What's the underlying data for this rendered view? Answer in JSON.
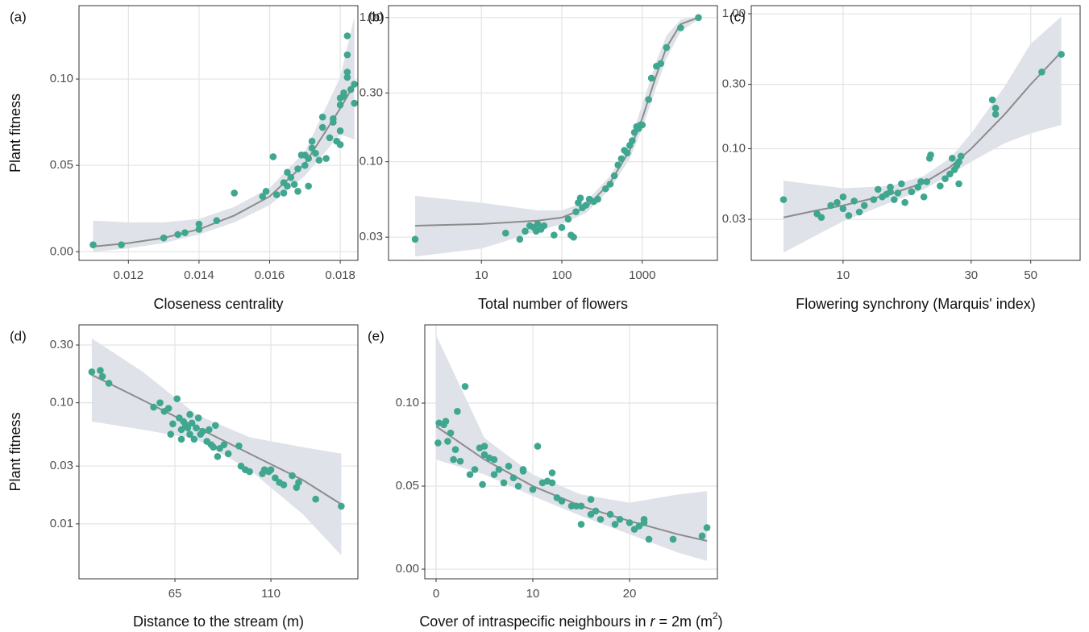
{
  "chart_data": [
    {
      "type": "scatter",
      "panel": "(a)",
      "ylabel": "Plant fitness",
      "xlabel": [
        {
          "text": "Closeness centrality"
        }
      ],
      "xlim": [
        0.0106,
        0.0185
      ],
      "ylim": [
        -0.005,
        0.1425
      ],
      "xticks": [
        0.012,
        0.014,
        0.016,
        0.018
      ],
      "yticks": [
        {
          "value": 0,
          "label": "0.00"
        },
        0.05,
        {
          "value": 0.1,
          "label": "0.10"
        }
      ],
      "xlog": false,
      "ylog": false,
      "grid": true,
      "points": {
        "color": "#3fa68f",
        "x": [
          0.011,
          0.0118,
          0.013,
          0.0134,
          0.0136,
          0.014,
          0.014,
          0.0145,
          0.015,
          0.0158,
          0.0159,
          0.0161,
          0.0162,
          0.0164,
          0.0164,
          0.0165,
          0.0165,
          0.0166,
          0.0167,
          0.0168,
          0.0168,
          0.0169,
          0.017,
          0.017,
          0.0171,
          0.0171,
          0.0172,
          0.0172,
          0.0173,
          0.0174,
          0.0175,
          0.0175,
          0.0176,
          0.0177,
          0.0178,
          0.0178,
          0.0179,
          0.018,
          0.018,
          0.018,
          0.018,
          0.0181,
          0.0182,
          0.0182,
          0.0182,
          0.0182,
          0.0183,
          0.0184,
          0.0184,
          0.0181
        ],
        "y": [
          0.004,
          0.004,
          0.008,
          0.01,
          0.011,
          0.013,
          0.016,
          0.018,
          0.034,
          0.032,
          0.035,
          0.055,
          0.033,
          0.034,
          0.04,
          0.038,
          0.046,
          0.043,
          0.039,
          0.035,
          0.048,
          0.056,
          0.05,
          0.056,
          0.038,
          0.054,
          0.06,
          0.064,
          0.057,
          0.053,
          0.072,
          0.078,
          0.054,
          0.066,
          0.075,
          0.077,
          0.064,
          0.062,
          0.07,
          0.085,
          0.089,
          0.09,
          0.114,
          0.125,
          0.104,
          0.101,
          0.094,
          0.097,
          0.086,
          0.092
        ]
      },
      "fit": {
        "color": "#8c8c8c",
        "x": [
          0.011,
          0.012,
          0.013,
          0.014,
          0.015,
          0.016,
          0.017,
          0.018,
          0.0184
        ],
        "y": [
          0.003,
          0.005,
          0.008,
          0.013,
          0.021,
          0.032,
          0.051,
          0.083,
          0.097
        ]
      },
      "band": {
        "color": "#dfe2e8",
        "x": [
          0.011,
          0.012,
          0.013,
          0.014,
          0.015,
          0.016,
          0.017,
          0.018,
          0.0184
        ],
        "lower": [
          0,
          0.002,
          0.005,
          0.01,
          0.017,
          0.027,
          0.044,
          0.068,
          0.065
        ],
        "upper": [
          0.018,
          0.017,
          0.017,
          0.019,
          0.026,
          0.037,
          0.058,
          0.101,
          0.136
        ]
      }
    },
    {
      "type": "scatter",
      "panel": "(b)",
      "xlabel": [
        {
          "text": "Total number of flowers"
        }
      ],
      "xlim": [
        0.7,
        8600
      ],
      "ylim": [
        0.0207,
        1.21
      ],
      "xticks": [
        10,
        100,
        1000
      ],
      "yticks": [
        0.03,
        {
          "value": 0.1,
          "label": "0.10"
        },
        {
          "value": 0.3,
          "label": "0.30"
        },
        {
          "value": 1,
          "label": "1.00"
        }
      ],
      "xlog": true,
      "ylog": true,
      "grid": true,
      "points": {
        "color": "#3fa68f",
        "x": [
          1.5,
          20,
          30,
          35,
          40,
          45,
          48,
          50,
          55,
          60,
          80,
          100,
          120,
          130,
          140,
          150,
          160,
          170,
          180,
          200,
          220,
          250,
          280,
          350,
          400,
          450,
          500,
          550,
          600,
          650,
          700,
          750,
          800,
          850,
          900,
          950,
          1000,
          1200,
          1300,
          1500,
          1700,
          2000,
          3000,
          5000
        ],
        "y": [
          0.029,
          0.032,
          0.029,
          0.033,
          0.036,
          0.035,
          0.033,
          0.037,
          0.034,
          0.036,
          0.031,
          0.035,
          0.04,
          0.031,
          0.03,
          0.045,
          0.052,
          0.056,
          0.048,
          0.05,
          0.055,
          0.053,
          0.055,
          0.065,
          0.07,
          0.08,
          0.095,
          0.105,
          0.12,
          0.115,
          0.13,
          0.14,
          0.16,
          0.175,
          0.17,
          0.18,
          0.18,
          0.27,
          0.38,
          0.46,
          0.48,
          0.62,
          0.85,
          1.0
        ]
      },
      "fit": {
        "color": "#8c8c8c",
        "x": [
          1.5,
          10,
          50,
          100,
          200,
          400,
          700,
          1000,
          1500,
          2000,
          3000,
          5000
        ],
        "y": [
          0.036,
          0.037,
          0.039,
          0.041,
          0.048,
          0.072,
          0.12,
          0.2,
          0.4,
          0.62,
          0.9,
          1.0
        ]
      },
      "band": {
        "color": "#dfe2e8",
        "x": [
          1.5,
          10,
          50,
          100,
          200,
          400,
          700,
          1000,
          1500,
          2000,
          3000,
          5000
        ],
        "lower": [
          0.022,
          0.025,
          0.033,
          0.037,
          0.044,
          0.065,
          0.105,
          0.17,
          0.33,
          0.52,
          0.8,
          0.97
        ],
        "upper": [
          0.058,
          0.052,
          0.046,
          0.046,
          0.053,
          0.08,
          0.135,
          0.25,
          0.5,
          0.75,
          0.97,
          1.02
        ]
      }
    },
    {
      "type": "scatter",
      "panel": "(c)",
      "xlabel": [
        {
          "text": "Flowering synchrony (Marquis' index)"
        }
      ],
      "xlim": [
        4.55,
        76.4
      ],
      "ylim": [
        0.0149,
        1.148
      ],
      "xticks": [
        10,
        30,
        50
      ],
      "yticks": [
        0.03,
        {
          "value": 0.1,
          "label": "0.10"
        },
        {
          "value": 0.3,
          "label": "0.30"
        },
        {
          "value": 1,
          "label": "1.00"
        }
      ],
      "xlog": true,
      "ylog": true,
      "grid": true,
      "points": {
        "color": "#3fa68f",
        "x": [
          6,
          8,
          8.3,
          9,
          9.5,
          10,
          10,
          10.5,
          11,
          11.5,
          12,
          13,
          13.5,
          14,
          14.5,
          15,
          15,
          15.5,
          16,
          16.5,
          17,
          18,
          19,
          19.5,
          20,
          20.5,
          21,
          21.2,
          23,
          24,
          25,
          25.5,
          26,
          26.5,
          27,
          27,
          27.5,
          36,
          37,
          37,
          55,
          65
        ],
        "y": [
          0.042,
          0.033,
          0.031,
          0.038,
          0.04,
          0.036,
          0.044,
          0.032,
          0.041,
          0.034,
          0.038,
          0.042,
          0.05,
          0.044,
          0.046,
          0.048,
          0.052,
          0.042,
          0.047,
          0.055,
          0.04,
          0.048,
          0.052,
          0.057,
          0.044,
          0.057,
          0.085,
          0.09,
          0.053,
          0.06,
          0.065,
          0.085,
          0.07,
          0.075,
          0.08,
          0.055,
          0.088,
          0.23,
          0.2,
          0.18,
          0.37,
          0.5
        ]
      },
      "fit": {
        "color": "#8c8c8c",
        "x": [
          6,
          8,
          10,
          15,
          20,
          25,
          30,
          40,
          50,
          65
        ],
        "y": [
          0.031,
          0.035,
          0.038,
          0.046,
          0.056,
          0.073,
          0.1,
          0.18,
          0.3,
          0.52
        ]
      },
      "band": {
        "color": "#dfe2e8",
        "x": [
          6,
          8,
          10,
          15,
          20,
          25,
          30,
          40,
          50,
          65
        ],
        "lower": [
          0.017,
          0.023,
          0.029,
          0.04,
          0.05,
          0.064,
          0.08,
          0.11,
          0.13,
          0.15
        ],
        "upper": [
          0.058,
          0.054,
          0.051,
          0.053,
          0.063,
          0.085,
          0.13,
          0.29,
          0.6,
          0.95
        ]
      }
    },
    {
      "type": "scatter",
      "panel": "(d)",
      "ylabel": "Plant fitness",
      "xlabel": [
        {
          "text": "Distance to the stream (m)"
        }
      ],
      "xlim": [
        20,
        150.8
      ],
      "ylim": [
        0.00352,
        0.44
      ],
      "xticks": [
        65,
        110
      ],
      "yticks": [
        0.01,
        0.03,
        {
          "value": 0.1,
          "label": "0.10"
        },
        {
          "value": 0.3,
          "label": "0.30"
        }
      ],
      "xlog": false,
      "ylog": true,
      "grid": true,
      "points": {
        "color": "#3fa68f",
        "x": [
          26,
          30,
          31,
          34,
          55,
          58,
          60,
          62,
          63,
          64,
          66,
          67,
          68,
          68,
          69,
          70,
          71,
          72,
          72,
          73,
          74,
          75,
          76,
          77,
          78,
          80,
          81,
          82,
          83,
          84,
          85,
          86,
          88,
          90,
          95,
          96,
          98,
          100,
          106,
          107,
          109,
          110,
          112,
          114,
          116,
          120,
          122,
          123,
          131,
          143
        ],
        "y": [
          0.18,
          0.185,
          0.165,
          0.145,
          0.092,
          0.1,
          0.085,
          0.09,
          0.055,
          0.067,
          0.108,
          0.075,
          0.06,
          0.05,
          0.07,
          0.065,
          0.062,
          0.08,
          0.055,
          0.068,
          0.05,
          0.062,
          0.075,
          0.055,
          0.058,
          0.048,
          0.06,
          0.045,
          0.043,
          0.065,
          0.036,
          0.042,
          0.045,
          0.038,
          0.044,
          0.03,
          0.028,
          0.027,
          0.026,
          0.028,
          0.027,
          0.028,
          0.024,
          0.022,
          0.021,
          0.025,
          0.02,
          0.022,
          0.016,
          0.014
        ]
      },
      "fit": {
        "color": "#8c8c8c",
        "x": [
          26,
          50,
          75,
          100,
          125,
          143
        ],
        "y": [
          0.17,
          0.105,
          0.063,
          0.038,
          0.023,
          0.0145
        ]
      },
      "band": {
        "color": "#dfe2e8",
        "x": [
          26,
          50,
          75,
          100,
          125,
          143
        ],
        "lower": [
          0.07,
          0.06,
          0.05,
          0.028,
          0.012,
          0.0055
        ],
        "upper": [
          0.34,
          0.18,
          0.08,
          0.052,
          0.043,
          0.038
        ]
      }
    },
    {
      "type": "scatter",
      "panel": "(e)",
      "xlabel": [
        {
          "text": "Cover of intraspecific neighbours in "
        },
        {
          "text": "r",
          "style": "italic"
        },
        {
          "text": " = 2m (m"
        },
        {
          "text": "2",
          "style": "sup"
        },
        {
          "text": ")"
        }
      ],
      "xlim": [
        -1.167,
        29.08
      ],
      "ylim": [
        -0.0058,
        0.1471
      ],
      "xticks": [
        0,
        10,
        20
      ],
      "yticks": [
        {
          "value": 0,
          "label": "0.00"
        },
        0.05,
        {
          "value": 0.1,
          "label": "0.10"
        }
      ],
      "xlog": false,
      "ylog": false,
      "grid": true,
      "points": {
        "color": "#3fa68f",
        "x": [
          0.2,
          0.3,
          0.8,
          1,
          1.2,
          1.5,
          1.8,
          2,
          2.2,
          2.5,
          3,
          3.5,
          4,
          4.5,
          4.8,
          5,
          5,
          5.5,
          6,
          6,
          6.5,
          7,
          7.5,
          8,
          8.5,
          9,
          9,
          10,
          10.5,
          11,
          11.5,
          12,
          12,
          12.5,
          13,
          14,
          14.5,
          15,
          15,
          16,
          16,
          16.5,
          17,
          18,
          18.5,
          19,
          20,
          20.5,
          21,
          21.5,
          21.5,
          22,
          24.5,
          27.5,
          28
        ],
        "y": [
          0.076,
          0.088,
          0.087,
          0.089,
          0.077,
          0.082,
          0.066,
          0.072,
          0.095,
          0.065,
          0.11,
          0.057,
          0.06,
          0.073,
          0.051,
          0.074,
          0.069,
          0.067,
          0.066,
          0.057,
          0.06,
          0.052,
          0.062,
          0.055,
          0.05,
          0.06,
          0.059,
          0.048,
          0.074,
          0.052,
          0.053,
          0.058,
          0.052,
          0.043,
          0.041,
          0.038,
          0.038,
          0.027,
          0.038,
          0.042,
          0.033,
          0.035,
          0.03,
          0.033,
          0.027,
          0.03,
          0.028,
          0.024,
          0.026,
          0.03,
          0.028,
          0.018,
          0.018,
          0.02,
          0.025
        ]
      },
      "fit": {
        "color": "#8c8c8c",
        "x": [
          0,
          5,
          10,
          15,
          20,
          25,
          28
        ],
        "y": [
          0.086,
          0.066,
          0.05,
          0.038,
          0.029,
          0.021,
          0.017
        ]
      },
      "band": {
        "color": "#dfe2e8",
        "x": [
          0,
          5,
          10,
          15,
          20,
          25,
          28
        ],
        "lower": [
          0.066,
          0.057,
          0.044,
          0.032,
          0.021,
          0.01,
          0.005
        ],
        "upper": [
          0.141,
          0.079,
          0.057,
          0.045,
          0.04,
          0.045,
          0.047
        ]
      }
    }
  ]
}
